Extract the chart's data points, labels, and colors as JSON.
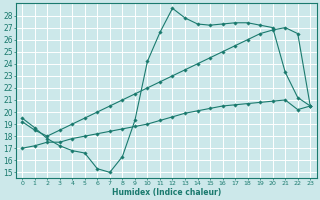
{
  "xlabel": "Humidex (Indice chaleur)",
  "ylabel": "",
  "bg_color": "#cce8ea",
  "grid_color": "#ffffff",
  "line_color": "#1a7a6e",
  "xlim": [
    -0.5,
    23.5
  ],
  "ylim": [
    14.5,
    29.0
  ],
  "yticks": [
    15,
    16,
    17,
    18,
    19,
    20,
    21,
    22,
    23,
    24,
    25,
    26,
    27,
    28
  ],
  "xticks": [
    0,
    1,
    2,
    3,
    4,
    5,
    6,
    7,
    8,
    9,
    10,
    11,
    12,
    13,
    14,
    15,
    16,
    17,
    18,
    19,
    20,
    21,
    22,
    23
  ],
  "line1_x": [
    0,
    1,
    2,
    3,
    4,
    5,
    6,
    7,
    8,
    9,
    10,
    11,
    12,
    13,
    14,
    15,
    16,
    17,
    18,
    19,
    20,
    21,
    22,
    23
  ],
  "line1_y": [
    19.5,
    18.7,
    17.8,
    17.2,
    16.8,
    16.6,
    15.3,
    15.0,
    16.3,
    19.3,
    24.2,
    26.6,
    28.6,
    27.8,
    27.3,
    27.2,
    27.3,
    27.4,
    27.4,
    27.2,
    27.0,
    23.3,
    21.2,
    20.5
  ],
  "line2_x": [
    0,
    1,
    2,
    3,
    4,
    5,
    6,
    7,
    8,
    9,
    10,
    11,
    12,
    13,
    14,
    15,
    16,
    17,
    18,
    19,
    20,
    21,
    22,
    23
  ],
  "line2_y": [
    19.2,
    18.5,
    18.0,
    18.5,
    19.0,
    19.5,
    20.0,
    20.5,
    21.0,
    21.5,
    22.0,
    22.5,
    23.0,
    23.5,
    24.0,
    24.5,
    25.0,
    25.5,
    26.0,
    26.5,
    26.8,
    27.0,
    26.5,
    20.5
  ],
  "line3_x": [
    0,
    1,
    2,
    3,
    4,
    5,
    6,
    7,
    8,
    9,
    10,
    11,
    12,
    13,
    14,
    15,
    16,
    17,
    18,
    19,
    20,
    21,
    22,
    23
  ],
  "line3_y": [
    17.0,
    17.2,
    17.5,
    17.5,
    17.8,
    18.0,
    18.2,
    18.4,
    18.6,
    18.8,
    19.0,
    19.3,
    19.6,
    19.9,
    20.1,
    20.3,
    20.5,
    20.6,
    20.7,
    20.8,
    20.9,
    21.0,
    20.2,
    20.5
  ]
}
